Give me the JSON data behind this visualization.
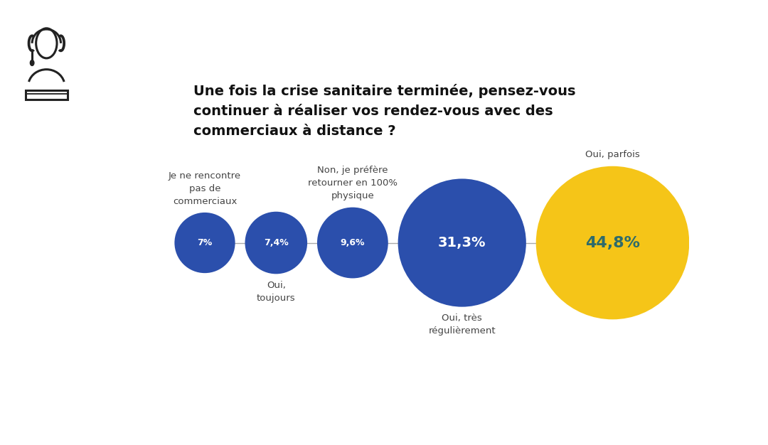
{
  "background_color": "#ffffff",
  "title": "Une fois la crise sanitaire terminée, pensez-vous\ncontinuer à réaliser vos rendez-vous avec des\ncommerciaux à distance ?",
  "bubbles": [
    {
      "value": 7.0,
      "label": "7%",
      "label_above": "Je ne rencontre\npas de\ncommerciaux",
      "label_below": "",
      "color": "#2b4fac",
      "text_color": "#ffffff"
    },
    {
      "value": 7.4,
      "label": "7,4%",
      "label_above": "",
      "label_below": "Oui,\ntoujours",
      "color": "#2b4fac",
      "text_color": "#ffffff"
    },
    {
      "value": 9.6,
      "label": "9,6%",
      "label_above": "Non, je préfère\nretourner en 100%\nphysique",
      "label_below": "",
      "color": "#2b4fac",
      "text_color": "#ffffff"
    },
    {
      "value": 31.3,
      "label": "31,3%",
      "label_above": "",
      "label_below": "Oui, très\nrégulièrement",
      "color": "#2b4fac",
      "text_color": "#ffffff"
    },
    {
      "value": 44.8,
      "label": "44,8%",
      "label_above": "Oui, parfois",
      "label_below": "",
      "color": "#f5c518",
      "text_color": "#2e6b6b"
    }
  ],
  "line_color": "#aaaaaa",
  "line_lw": 1.0,
  "label_color": "#444444",
  "label_fontsize": 9.5,
  "title_fontsize": 14,
  "title_color": "#111111"
}
